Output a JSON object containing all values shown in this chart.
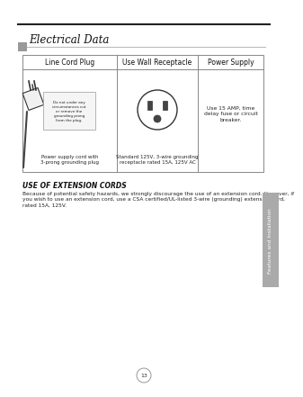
{
  "page_bg": "#ffffff",
  "title_text": "Electrical Data",
  "title_fontsize": 8.5,
  "top_line_color": "#333333",
  "gray_square_color": "#999999",
  "header_fontsize": 5.5,
  "body_fontsize": 4.3,
  "col1_header": "Line Cord Plug",
  "col2_header": "Use Wall Receptacle",
  "col3_header": "Power Supply",
  "plug_warning_text": "Do not under any\ncircumstances cut\nor remove the\ngrounding prong\nfrom the plug.",
  "plug_caption": "Power supply cord with\n3-prong grounding plug",
  "receptacle_caption": "Standard 125V, 3-wire grounding\nreceptacle rated 15A, 125V AC",
  "power_supply_text": "Use 15 AMP, time\ndelay fuse or circuit\nbreaker.",
  "extension_title": "USE OF EXTENSION CORDS",
  "extension_title_fontsize": 5.5,
  "extension_body": "Because of potential safety hazards, we strongly discourage the use of an extension cord. However, if\nyou wish to use an extension cord, use a CSA certified/UL-listed 3-wire (grounding) extension cord,\nrated 15A, 125V.",
  "extension_body_fontsize": 4.2,
  "sidebar_text": "Features and Installation",
  "sidebar_color": "#aaaaaa",
  "sidebar_text_color": "#ffffff",
  "page_number": "13",
  "page_number_fontsize": 4.5,
  "table_line_color": "#888888",
  "line_color": "#222222"
}
